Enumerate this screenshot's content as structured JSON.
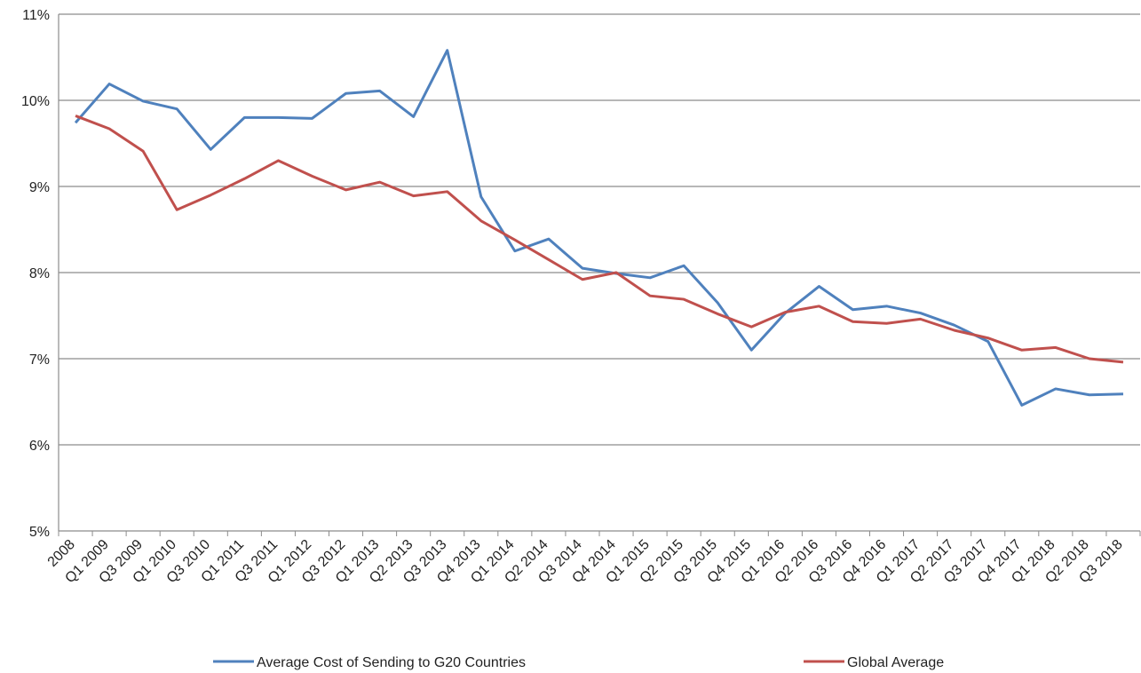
{
  "chart_data": {
    "type": "line",
    "categories": [
      "2008",
      "Q1 2009",
      "Q3 2009",
      "Q1 2010",
      "Q3 2010",
      "Q1 2011",
      "Q3 2011",
      "Q1 2012",
      "Q3 2012",
      "Q1 2013",
      "Q2 2013",
      "Q3 2013",
      "Q4 2013",
      "Q1 2014",
      "Q2 2014",
      "Q3 2014",
      "Q4 2014",
      "Q1 2015",
      "Q2 2015",
      "Q3 2015",
      "Q4 2015",
      "Q1 2016",
      "Q2 2016",
      "Q3 2016",
      "Q4 2016",
      "Q1 2017",
      "Q2 2017",
      "Q3 2017",
      "Q4 2017",
      "Q1 2018",
      "Q2 2018",
      "Q3 2018"
    ],
    "series": [
      {
        "name": "Average Cost of Sending to G20 Countries",
        "color": "#4f81bd",
        "values": [
          9.74,
          10.19,
          9.99,
          9.9,
          9.43,
          9.8,
          9.8,
          9.79,
          10.08,
          10.11,
          9.81,
          10.58,
          8.88,
          8.25,
          8.39,
          8.05,
          7.99,
          7.94,
          8.08,
          7.65,
          7.1,
          7.53,
          7.84,
          7.57,
          7.61,
          7.53,
          7.39,
          7.2,
          6.46,
          6.65,
          6.58,
          6.59
        ]
      },
      {
        "name": "Global Average",
        "color": "#c0504d",
        "values": [
          9.82,
          9.67,
          9.41,
          8.73,
          8.9,
          9.09,
          9.3,
          9.12,
          8.96,
          9.05,
          8.89,
          8.94,
          8.6,
          8.38,
          8.15,
          7.92,
          8.0,
          7.73,
          7.69,
          7.52,
          7.37,
          7.54,
          7.61,
          7.43,
          7.41,
          7.46,
          7.33,
          7.24,
          7.1,
          7.13,
          7.0,
          6.96
        ]
      }
    ],
    "ylim": [
      5,
      11
    ],
    "yticks": [
      {
        "value": 5,
        "label": "5%"
      },
      {
        "value": 6,
        "label": "6%"
      },
      {
        "value": 7,
        "label": "7%"
      },
      {
        "value": 8,
        "label": "8%"
      },
      {
        "value": 9,
        "label": "9%"
      },
      {
        "value": 10,
        "label": "10%"
      },
      {
        "value": 11,
        "label": "11%"
      }
    ],
    "grid": true,
    "legend": "bottom"
  }
}
